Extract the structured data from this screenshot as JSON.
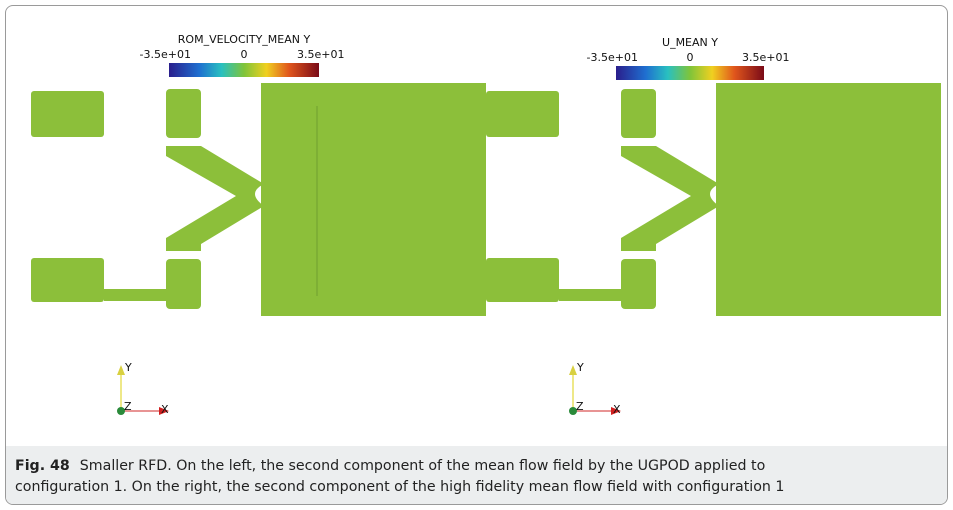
{
  "panels": [
    {
      "colorbar": {
        "title": "ROM_VELOCITY_MEAN Y",
        "ticks": [
          "-3.5e+01",
          "0",
          "3.5e+01"
        ]
      },
      "axes": {
        "y": "Y",
        "z": "Z",
        "x": "X"
      }
    },
    {
      "colorbar": {
        "title": "U_MEAN Y",
        "ticks": [
          "-3.5e+01",
          "0",
          "3.5e+01"
        ]
      },
      "axes": {
        "y": "Y",
        "z": "Z",
        "x": "X"
      }
    }
  ],
  "caption": {
    "label": "Fig. 48",
    "lines": [
      "Smaller RFD. On the left, the second component of the mean flow field by the UGPOD applied to",
      "configuration 1. On the right, the second component of the high fidelity mean flow field with configuration 1"
    ]
  }
}
